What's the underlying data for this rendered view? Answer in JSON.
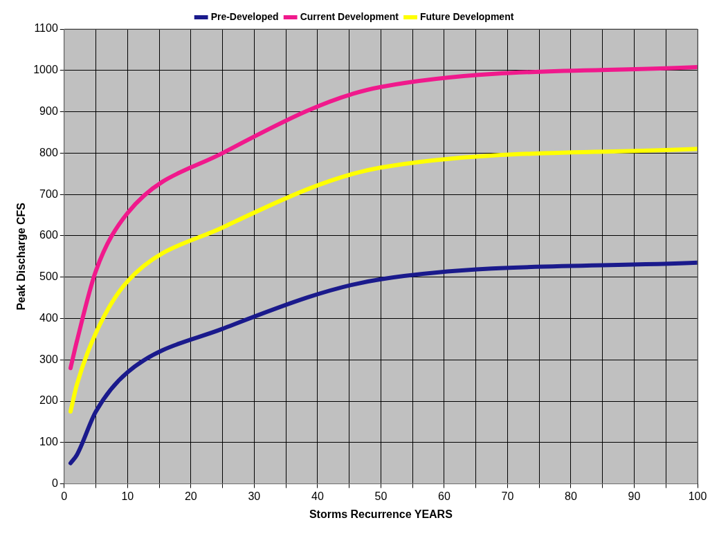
{
  "chart_data": {
    "type": "line",
    "xlabel": "Storms Recurrence YEARS",
    "ylabel": "Peak Discharge CFS",
    "x": [
      1,
      2,
      5,
      10,
      25,
      50,
      100
    ],
    "series": [
      {
        "name": "Pre-Developed",
        "color": "#1a1a8c",
        "values": [
          50,
          70,
          175,
          270,
          375,
          495,
          535
        ]
      },
      {
        "name": "Current Development",
        "color": "#f0198c",
        "values": [
          280,
          345,
          515,
          655,
          800,
          960,
          1008
        ]
      },
      {
        "name": "Future Development",
        "color": "#ffff00",
        "values": [
          175,
          240,
          365,
          490,
          620,
          765,
          810
        ]
      }
    ],
    "xlim": [
      0,
      100
    ],
    "xticks": [
      0,
      {
        "value": 5,
        "label": null
      },
      10,
      {
        "value": 15,
        "label": null
      },
      20,
      {
        "value": 25,
        "label": null
      },
      30,
      {
        "value": 35,
        "label": null
      },
      40,
      {
        "value": 45,
        "label": null
      },
      50,
      {
        "value": 55,
        "label": null
      },
      60,
      {
        "value": 65,
        "label": null
      },
      70,
      {
        "value": 75,
        "label": null
      },
      80,
      {
        "value": 85,
        "label": null
      },
      90,
      {
        "value": 95,
        "label": null
      },
      100
    ],
    "ylim": [
      0,
      1100
    ],
    "yticks": [
      0,
      100,
      200,
      300,
      400,
      500,
      600,
      700,
      800,
      900,
      1000,
      1100
    ],
    "grid": true,
    "legend": "top",
    "line_style": "solid"
  }
}
